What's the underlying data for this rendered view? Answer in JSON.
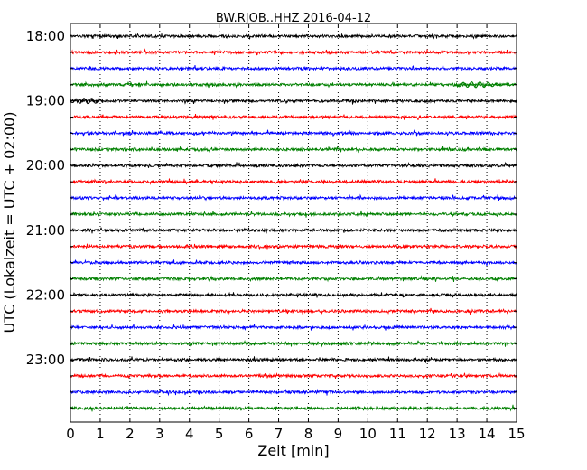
{
  "chart_data": {
    "type": "line",
    "title": "BW.RJOB..HHZ 2016-04-12",
    "xlabel": "Zeit  [min]",
    "ylabel": "UTC (Lokalzeit = UTC + 02:00)",
    "xlim": [
      0,
      15
    ],
    "x_ticks": [
      "0",
      "1",
      "2",
      "3",
      "4",
      "5",
      "6",
      "7",
      "8",
      "9",
      "10",
      "11",
      "12",
      "13",
      "14",
      "15"
    ],
    "y_tick_labels": [
      "18:00",
      "19:00",
      "20:00",
      "21:00",
      "22:00",
      "23:00"
    ],
    "row_interval_minutes": 15,
    "grid": "vertical dotted",
    "colors": [
      "#000000",
      "#ff0000",
      "#0000ff",
      "#008000"
    ],
    "traces": [
      {
        "start": "18:00",
        "color": "#000000"
      },
      {
        "start": "18:15",
        "color": "#ff0000"
      },
      {
        "start": "18:30",
        "color": "#0000ff"
      },
      {
        "start": "18:45",
        "color": "#008000"
      },
      {
        "start": "19:00",
        "color": "#000000"
      },
      {
        "start": "19:15",
        "color": "#ff0000"
      },
      {
        "start": "19:30",
        "color": "#0000ff"
      },
      {
        "start": "19:45",
        "color": "#008000"
      },
      {
        "start": "20:00",
        "color": "#000000"
      },
      {
        "start": "20:15",
        "color": "#ff0000"
      },
      {
        "start": "20:30",
        "color": "#0000ff"
      },
      {
        "start": "20:45",
        "color": "#008000"
      },
      {
        "start": "21:00",
        "color": "#000000"
      },
      {
        "start": "21:15",
        "color": "#ff0000"
      },
      {
        "start": "21:30",
        "color": "#0000ff"
      },
      {
        "start": "21:45",
        "color": "#008000"
      },
      {
        "start": "22:00",
        "color": "#000000"
      },
      {
        "start": "22:15",
        "color": "#ff0000"
      },
      {
        "start": "22:30",
        "color": "#0000ff"
      },
      {
        "start": "22:45",
        "color": "#008000"
      },
      {
        "start": "23:00",
        "color": "#000000"
      },
      {
        "start": "23:15",
        "color": "#ff0000"
      },
      {
        "start": "23:30",
        "color": "#0000ff"
      },
      {
        "start": "23:45",
        "color": "#008000"
      }
    ]
  }
}
